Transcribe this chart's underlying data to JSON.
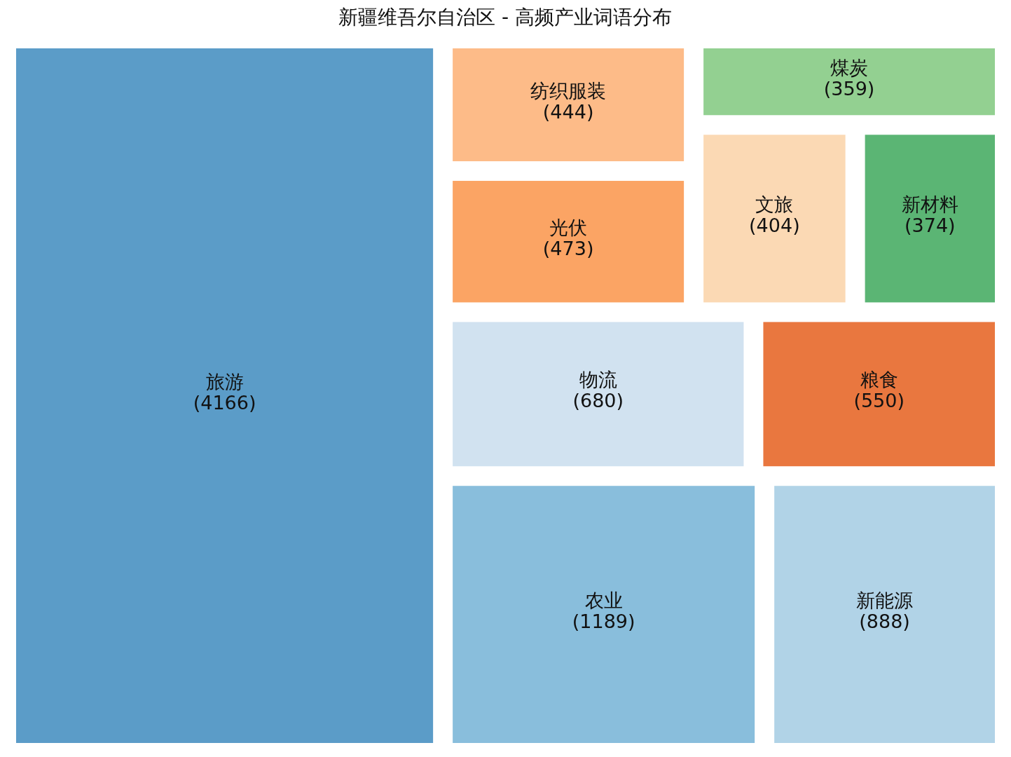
{
  "chart_data": {
    "type": "other",
    "title": "新疆维吾尔自治区 - 高频产业词语分布",
    "categories": [
      "旅游",
      "农业",
      "新能源",
      "物流",
      "粮食",
      "光伏",
      "纺织服装",
      "文旅",
      "新材料",
      "煤炭"
    ],
    "values": [
      4166,
      1189,
      888,
      680,
      550,
      473,
      444,
      404,
      374,
      359
    ],
    "colors": [
      "#5b9cc8",
      "#89bedc",
      "#b1d3e7",
      "#d1e2f0",
      "#e9773f",
      "#fba464",
      "#fdbb88",
      "#fbd9b4",
      "#5bb574",
      "#93d091"
    ],
    "value_labels": [
      "(4166)",
      "(1189)",
      "(888)",
      "(680)",
      "(550)",
      "(473)",
      "(444)",
      "(404)",
      "(374)",
      "(359)"
    ]
  }
}
